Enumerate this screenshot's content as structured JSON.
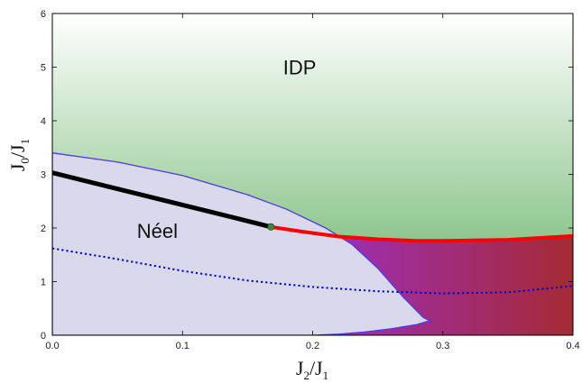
{
  "chart_data": {
    "type": "line",
    "xlabel": {
      "main": "J",
      "sub1": "2",
      "mid": "/J",
      "sub2": "1"
    },
    "ylabel": {
      "main": "J",
      "sub1": "0",
      "mid": "/J",
      "sub2": "1"
    },
    "xlim": [
      0,
      0.4
    ],
    "ylim": [
      0,
      6
    ],
    "x_ticks": [
      0.0,
      0.1,
      0.2,
      0.3,
      0.4
    ],
    "x_tick_labels": [
      "0.0",
      "0.1",
      "0.2",
      "0.3",
      "0.4"
    ],
    "y_ticks": [
      0,
      1,
      2,
      3,
      4,
      5,
      6
    ],
    "y_tick_labels": [
      "0",
      "1",
      "2",
      "3",
      "4",
      "5",
      "6"
    ],
    "region_labels": [
      {
        "text": "IDP",
        "x": 0.19,
        "y": 5.0
      },
      {
        "text": "Néel",
        "x": 0.065,
        "y": 1.95
      }
    ],
    "neel_boundary": [
      [
        0.0,
        3.4
      ],
      [
        0.05,
        3.23
      ],
      [
        0.1,
        2.98
      ],
      [
        0.15,
        2.62
      ],
      [
        0.18,
        2.35
      ],
      [
        0.21,
        2.0
      ],
      [
        0.23,
        1.7
      ],
      [
        0.25,
        1.25
      ],
      [
        0.27,
        0.7
      ],
      [
        0.285,
        0.33
      ],
      [
        0.29,
        0.27
      ],
      [
        0.28,
        0.2
      ],
      [
        0.26,
        0.12
      ],
      [
        0.24,
        0.06
      ],
      [
        0.22,
        0.02
      ],
      [
        0.2,
        0.0
      ]
    ],
    "series": [
      {
        "color": "#000000",
        "points": [
          [
            0.0,
            3.03
          ],
          [
            0.05,
            2.73
          ],
          [
            0.1,
            2.43
          ],
          [
            0.15,
            2.13
          ],
          [
            0.168,
            2.02
          ]
        ]
      },
      {
        "color": "#ff0000",
        "points": [
          [
            0.168,
            2.02
          ],
          [
            0.19,
            1.94
          ],
          [
            0.22,
            1.84
          ],
          [
            0.25,
            1.79
          ],
          [
            0.28,
            1.76
          ],
          [
            0.3,
            1.76
          ],
          [
            0.35,
            1.78
          ],
          [
            0.4,
            1.85
          ]
        ]
      },
      {
        "color": "#0000cc",
        "dashed": true,
        "points": [
          [
            0.0,
            1.62
          ],
          [
            0.05,
            1.42
          ],
          [
            0.1,
            1.2
          ],
          [
            0.15,
            1.02
          ],
          [
            0.2,
            0.9
          ],
          [
            0.25,
            0.82
          ],
          [
            0.3,
            0.78
          ],
          [
            0.35,
            0.8
          ],
          [
            0.4,
            0.92
          ]
        ]
      }
    ],
    "marker": {
      "x": 0.168,
      "y": 2.02,
      "color": "#3a8a3a"
    },
    "colors": {
      "idp_top": "#ffffff",
      "idp_bottom": "#5fae5f",
      "neel_fill": "#d9d8ec",
      "neel_edge": "#4a3de0",
      "gradient_start": "#9b2fd6",
      "gradient_end": "#a52a35"
    }
  }
}
